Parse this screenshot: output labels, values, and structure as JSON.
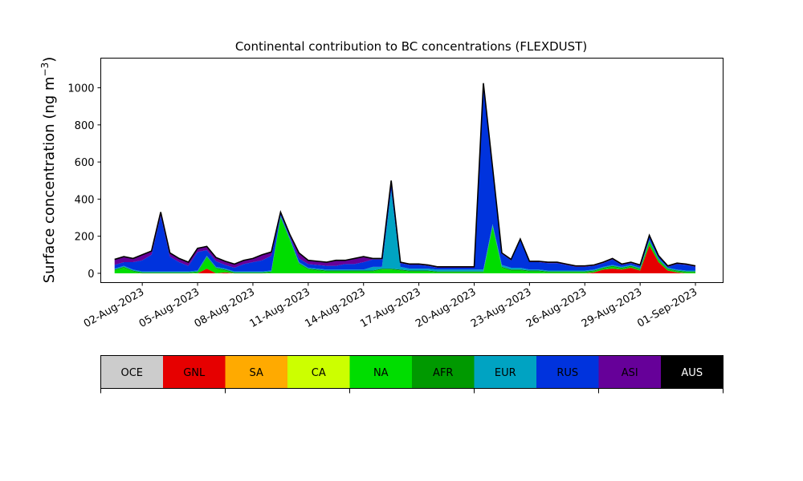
{
  "chart_data": {
    "type": "area",
    "title": "Continental contribution to BC concentrations (FLEXDUST)",
    "ylabel": "Surface concentration (ng m",
    "ylabel_sup": "−3",
    "ylabel_close": ")",
    "xlabel": "",
    "ylim": [
      -50,
      1160
    ],
    "yticks": [
      0,
      200,
      400,
      600,
      800,
      1000
    ],
    "xlim": [
      "2023-07-30T18:00",
      "2023-09-02T12:00"
    ],
    "xticks": [
      {
        "date": "2023-08-02",
        "label": "02-Aug-2023"
      },
      {
        "date": "2023-08-05",
        "label": "05-Aug-2023"
      },
      {
        "date": "2023-08-08",
        "label": "08-Aug-2023"
      },
      {
        "date": "2023-08-11",
        "label": "11-Aug-2023"
      },
      {
        "date": "2023-08-14",
        "label": "14-Aug-2023"
      },
      {
        "date": "2023-08-17",
        "label": "17-Aug-2023"
      },
      {
        "date": "2023-08-20",
        "label": "20-Aug-2023"
      },
      {
        "date": "2023-08-23",
        "label": "23-Aug-2023"
      },
      {
        "date": "2023-08-26",
        "label": "26-Aug-2023"
      },
      {
        "date": "2023-08-29",
        "label": "29-Aug-2023"
      },
      {
        "date": "2023-09-01",
        "label": "01-Sep-2023"
      }
    ],
    "x": [
      "2023-07-31T12:00",
      "2023-08-01T00:00",
      "2023-08-01T12:00",
      "2023-08-02T00:00",
      "2023-08-02T12:00",
      "2023-08-03T00:00",
      "2023-08-03T12:00",
      "2023-08-04T00:00",
      "2023-08-04T12:00",
      "2023-08-05T00:00",
      "2023-08-05T12:00",
      "2023-08-06T00:00",
      "2023-08-06T12:00",
      "2023-08-07T00:00",
      "2023-08-07T12:00",
      "2023-08-08T00:00",
      "2023-08-08T12:00",
      "2023-08-09T00:00",
      "2023-08-09T12:00",
      "2023-08-10T00:00",
      "2023-08-10T12:00",
      "2023-08-11T00:00",
      "2023-08-11T12:00",
      "2023-08-12T00:00",
      "2023-08-12T12:00",
      "2023-08-13T00:00",
      "2023-08-13T12:00",
      "2023-08-14T00:00",
      "2023-08-14T12:00",
      "2023-08-15T00:00",
      "2023-08-15T12:00",
      "2023-08-16T00:00",
      "2023-08-16T12:00",
      "2023-08-17T00:00",
      "2023-08-17T12:00",
      "2023-08-18T00:00",
      "2023-08-18T12:00",
      "2023-08-19T00:00",
      "2023-08-19T12:00",
      "2023-08-20T00:00",
      "2023-08-20T12:00",
      "2023-08-21T00:00",
      "2023-08-21T12:00",
      "2023-08-22T00:00",
      "2023-08-22T12:00",
      "2023-08-23T00:00",
      "2023-08-23T12:00",
      "2023-08-24T00:00",
      "2023-08-24T12:00",
      "2023-08-25T00:00",
      "2023-08-25T12:00",
      "2023-08-26T00:00",
      "2023-08-26T12:00",
      "2023-08-27T00:00",
      "2023-08-27T12:00",
      "2023-08-28T00:00",
      "2023-08-28T12:00",
      "2023-08-29T00:00",
      "2023-08-29T12:00",
      "2023-08-30T00:00",
      "2023-08-30T12:00",
      "2023-08-31T00:00",
      "2023-08-31T12:00",
      "2023-09-01T00:00"
    ],
    "series": [
      {
        "name": "OCE",
        "color": "#cccccc",
        "values": [
          0,
          0,
          0,
          0,
          0,
          0,
          0,
          0,
          0,
          0,
          0,
          0,
          0,
          0,
          0,
          0,
          0,
          0,
          0,
          0,
          0,
          0,
          0,
          0,
          0,
          0,
          0,
          0,
          0,
          0,
          0,
          0,
          0,
          0,
          0,
          0,
          0,
          0,
          0,
          0,
          0,
          0,
          0,
          0,
          0,
          0,
          0,
          0,
          0,
          0,
          0,
          0,
          0,
          0,
          0,
          0,
          0,
          0,
          0,
          0,
          0,
          0,
          0,
          0
        ]
      },
      {
        "name": "GNL",
        "color": "#e60000",
        "values": [
          0,
          0,
          0,
          0,
          0,
          0,
          0,
          0,
          0,
          0,
          25,
          0,
          5,
          0,
          0,
          0,
          0,
          0,
          0,
          0,
          0,
          0,
          0,
          0,
          0,
          0,
          0,
          0,
          0,
          0,
          0,
          0,
          0,
          0,
          0,
          0,
          0,
          0,
          0,
          0,
          0,
          0,
          0,
          0,
          0,
          0,
          0,
          0,
          0,
          0,
          0,
          0,
          5,
          20,
          25,
          20,
          30,
          15,
          150,
          60,
          15,
          5,
          0,
          0
        ]
      },
      {
        "name": "SA",
        "color": "#ffaa00",
        "values": [
          0,
          0,
          0,
          0,
          0,
          0,
          0,
          0,
          0,
          0,
          0,
          0,
          0,
          0,
          0,
          0,
          0,
          0,
          0,
          0,
          0,
          0,
          0,
          0,
          0,
          0,
          0,
          0,
          0,
          0,
          0,
          0,
          0,
          0,
          0,
          0,
          0,
          0,
          0,
          0,
          0,
          0,
          0,
          0,
          0,
          0,
          0,
          0,
          0,
          0,
          0,
          0,
          0,
          0,
          0,
          0,
          0,
          0,
          0,
          0,
          0,
          0,
          0,
          0
        ]
      },
      {
        "name": "CA",
        "color": "#ccff00",
        "values": [
          0,
          0,
          0,
          0,
          0,
          0,
          0,
          0,
          0,
          0,
          0,
          0,
          0,
          0,
          0,
          0,
          0,
          0,
          0,
          0,
          0,
          0,
          0,
          0,
          0,
          0,
          0,
          0,
          0,
          0,
          0,
          0,
          0,
          0,
          0,
          0,
          0,
          0,
          0,
          0,
          0,
          0,
          0,
          0,
          0,
          0,
          0,
          0,
          0,
          0,
          0,
          0,
          0,
          0,
          0,
          0,
          0,
          0,
          0,
          0,
          0,
          0,
          0,
          0
        ]
      },
      {
        "name": "NA",
        "color": "#00dd00",
        "values": [
          15,
          30,
          10,
          0,
          0,
          0,
          0,
          0,
          0,
          5,
          60,
          25,
          10,
          0,
          0,
          0,
          0,
          5,
          300,
          180,
          50,
          20,
          15,
          10,
          10,
          10,
          10,
          10,
          10,
          20,
          20,
          15,
          10,
          10,
          10,
          5,
          5,
          5,
          5,
          5,
          5,
          250,
          30,
          15,
          15,
          10,
          10,
          5,
          5,
          5,
          5,
          5,
          5,
          5,
          10,
          5,
          5,
          5,
          20,
          10,
          5,
          5,
          5,
          5
        ]
      },
      {
        "name": "AFR",
        "color": "#009900",
        "values": [
          5,
          5,
          5,
          5,
          5,
          5,
          5,
          5,
          5,
          5,
          5,
          5,
          5,
          5,
          5,
          5,
          5,
          5,
          5,
          5,
          5,
          5,
          5,
          5,
          5,
          5,
          5,
          5,
          5,
          5,
          5,
          5,
          5,
          5,
          5,
          5,
          5,
          5,
          5,
          5,
          5,
          5,
          5,
          5,
          5,
          5,
          5,
          5,
          5,
          5,
          5,
          5,
          5,
          5,
          5,
          5,
          5,
          5,
          5,
          5,
          5,
          5,
          5,
          5
        ]
      },
      {
        "name": "EUR",
        "color": "#00a3c2",
        "values": [
          5,
          5,
          5,
          5,
          5,
          5,
          5,
          5,
          5,
          5,
          5,
          5,
          5,
          5,
          5,
          5,
          5,
          5,
          5,
          5,
          5,
          5,
          5,
          5,
          5,
          5,
          5,
          5,
          20,
          10,
          420,
          15,
          10,
          10,
          10,
          10,
          10,
          10,
          10,
          10,
          10,
          10,
          10,
          10,
          10,
          5,
          5,
          5,
          5,
          5,
          5,
          5,
          5,
          5,
          5,
          5,
          5,
          5,
          5,
          5,
          5,
          5,
          5,
          5
        ]
      },
      {
        "name": "RUS",
        "color": "#0033dd",
        "values": [
          20,
          20,
          40,
          60,
          90,
          300,
          80,
          50,
          30,
          100,
          30,
          30,
          20,
          20,
          40,
          50,
          60,
          80,
          10,
          10,
          20,
          20,
          20,
          20,
          20,
          30,
          30,
          40,
          40,
          40,
          50,
          20,
          20,
          20,
          15,
          10,
          10,
          10,
          10,
          10,
          1000,
          300,
          60,
          40,
          150,
          40,
          40,
          40,
          40,
          30,
          20,
          20,
          20,
          20,
          30,
          10,
          10,
          10,
          20,
          10,
          5,
          30,
          30,
          20
        ]
      },
      {
        "name": "ASI",
        "color": "#660099",
        "values": [
          30,
          30,
          20,
          30,
          20,
          20,
          20,
          20,
          20,
          20,
          20,
          20,
          20,
          20,
          20,
          20,
          30,
          20,
          10,
          10,
          30,
          20,
          20,
          20,
          30,
          20,
          30,
          30,
          5,
          5,
          5,
          5,
          5,
          5,
          5,
          5,
          5,
          5,
          5,
          5,
          5,
          5,
          5,
          5,
          5,
          5,
          5,
          5,
          5,
          5,
          5,
          5,
          5,
          5,
          5,
          5,
          5,
          5,
          5,
          5,
          5,
          5,
          5,
          5
        ]
      },
      {
        "name": "AUS",
        "color": "#000000",
        "values": [
          0,
          0,
          0,
          0,
          0,
          0,
          0,
          0,
          0,
          0,
          0,
          0,
          0,
          0,
          0,
          0,
          0,
          0,
          0,
          0,
          0,
          0,
          0,
          0,
          0,
          0,
          0,
          0,
          0,
          0,
          0,
          0,
          0,
          0,
          0,
          0,
          0,
          0,
          0,
          0,
          0,
          0,
          0,
          0,
          0,
          0,
          0,
          0,
          0,
          0,
          0,
          0,
          0,
          0,
          0,
          0,
          0,
          0,
          0,
          0,
          0,
          0,
          0,
          0
        ]
      }
    ],
    "legend": {
      "placement": "bottom",
      "labels": [
        "OCE",
        "GNL",
        "SA",
        "CA",
        "NA",
        "AFR",
        "EUR",
        "RUS",
        "ASI",
        "AUS"
      ],
      "label_colors": [
        "#000000",
        "#000000",
        "#000000",
        "#000000",
        "#000000",
        "#000000",
        "#000000",
        "#000000",
        "#000000",
        "#ffffff"
      ]
    },
    "grid": false
  }
}
